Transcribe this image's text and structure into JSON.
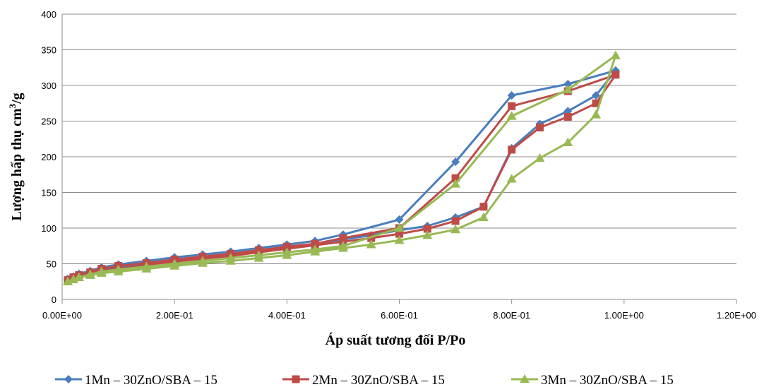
{
  "chart_data": {
    "type": "line",
    "xlabel": "Áp suất tương đối P/Po",
    "ylabel_main": "Lượng hấp thụ cm",
    "ylabel_sup": "3",
    "ylabel_tail": "/g",
    "xlim": [
      0,
      1.2
    ],
    "ylim": [
      0,
      400
    ],
    "x_ticks": [
      0,
      0.2,
      0.4,
      0.6,
      0.8,
      1.0,
      1.2
    ],
    "x_tick_labels": [
      "0.00E+00",
      "2.00E-01",
      "4.00E-01",
      "6.00E-01",
      "8.00E-01",
      "1.00E+00",
      "1.20E+00"
    ],
    "y_ticks": [
      0,
      50,
      100,
      150,
      200,
      250,
      300,
      350,
      400
    ],
    "y_tick_labels": [
      "0",
      "50",
      "100",
      "150",
      "200",
      "250",
      "300",
      "350",
      "400"
    ],
    "grid": "horizontal",
    "legend_position": "bottom",
    "series": [
      {
        "name": "1Mn – 30ZnO/SBA – 15",
        "color": "#4a7ebb",
        "marker": "diamond",
        "points": [
          [
            0.01,
            29
          ],
          [
            0.02,
            32
          ],
          [
            0.03,
            36
          ],
          [
            0.05,
            40
          ],
          [
            0.07,
            45
          ],
          [
            0.1,
            49
          ],
          [
            0.15,
            54
          ],
          [
            0.2,
            59
          ],
          [
            0.25,
            63
          ],
          [
            0.3,
            67
          ],
          [
            0.35,
            72
          ],
          [
            0.4,
            77
          ],
          [
            0.45,
            82
          ],
          [
            0.5,
            91
          ],
          [
            0.6,
            112
          ],
          [
            0.7,
            193
          ],
          [
            0.8,
            286
          ],
          [
            0.9,
            302
          ],
          [
            0.985,
            321
          ],
          [
            0.95,
            286
          ],
          [
            0.9,
            264
          ],
          [
            0.85,
            246
          ],
          [
            0.8,
            212
          ],
          [
            0.75,
            130
          ],
          [
            0.7,
            115
          ],
          [
            0.65,
            103
          ],
          [
            0.6,
            97
          ],
          [
            0.55,
            90
          ],
          [
            0.5,
            84
          ],
          [
            0.45,
            78
          ],
          [
            0.4,
            72
          ],
          [
            0.35,
            68
          ],
          [
            0.3,
            63
          ],
          [
            0.25,
            59
          ],
          [
            0.2,
            55
          ],
          [
            0.15,
            50
          ],
          [
            0.1,
            45
          ],
          [
            0.07,
            42
          ],
          [
            0.05,
            38
          ],
          [
            0.03,
            35
          ],
          [
            0.02,
            32
          ],
          [
            0.01,
            28
          ]
        ]
      },
      {
        "name": "2Mn – 30ZnO/SBA – 15",
        "color": "#be4b48",
        "marker": "square",
        "points": [
          [
            0.01,
            27
          ],
          [
            0.02,
            30
          ],
          [
            0.03,
            34
          ],
          [
            0.05,
            38
          ],
          [
            0.07,
            43
          ],
          [
            0.1,
            47
          ],
          [
            0.15,
            51
          ],
          [
            0.2,
            56
          ],
          [
            0.25,
            60
          ],
          [
            0.3,
            64
          ],
          [
            0.35,
            69
          ],
          [
            0.4,
            74
          ],
          [
            0.45,
            78
          ],
          [
            0.5,
            86
          ],
          [
            0.6,
            100
          ],
          [
            0.7,
            170
          ],
          [
            0.8,
            271
          ],
          [
            0.9,
            292
          ],
          [
            0.985,
            315
          ],
          [
            0.95,
            275
          ],
          [
            0.9,
            256
          ],
          [
            0.85,
            241
          ],
          [
            0.8,
            210
          ],
          [
            0.75,
            130
          ],
          [
            0.7,
            110
          ],
          [
            0.65,
            99
          ],
          [
            0.6,
            92
          ],
          [
            0.55,
            86
          ],
          [
            0.5,
            81
          ],
          [
            0.45,
            76
          ],
          [
            0.4,
            71
          ],
          [
            0.35,
            66
          ],
          [
            0.3,
            61
          ],
          [
            0.25,
            57
          ],
          [
            0.2,
            53
          ],
          [
            0.15,
            48
          ],
          [
            0.1,
            43
          ],
          [
            0.07,
            40
          ],
          [
            0.05,
            37
          ],
          [
            0.03,
            34
          ],
          [
            0.02,
            31
          ],
          [
            0.01,
            27
          ]
        ]
      },
      {
        "name": "3Mn – 30ZnO/SBA – 15",
        "color": "#98b954",
        "marker": "triangle",
        "points": [
          [
            0.01,
            25
          ],
          [
            0.02,
            28
          ],
          [
            0.03,
            31
          ],
          [
            0.05,
            35
          ],
          [
            0.07,
            39
          ],
          [
            0.1,
            42
          ],
          [
            0.15,
            46
          ],
          [
            0.2,
            50
          ],
          [
            0.25,
            54
          ],
          [
            0.3,
            58
          ],
          [
            0.35,
            62
          ],
          [
            0.4,
            66
          ],
          [
            0.45,
            70
          ],
          [
            0.5,
            75
          ],
          [
            0.6,
            100
          ],
          [
            0.7,
            162
          ],
          [
            0.8,
            257
          ],
          [
            0.9,
            294
          ],
          [
            0.985,
            342
          ],
          [
            0.95,
            259
          ],
          [
            0.9,
            220
          ],
          [
            0.85,
            198
          ],
          [
            0.8,
            169
          ],
          [
            0.75,
            115
          ],
          [
            0.7,
            98
          ],
          [
            0.65,
            90
          ],
          [
            0.6,
            83
          ],
          [
            0.55,
            77
          ],
          [
            0.5,
            72
          ],
          [
            0.45,
            67
          ],
          [
            0.4,
            62
          ],
          [
            0.35,
            58
          ],
          [
            0.3,
            54
          ],
          [
            0.25,
            51
          ],
          [
            0.2,
            47
          ],
          [
            0.15,
            43
          ],
          [
            0.1,
            39
          ],
          [
            0.07,
            37
          ],
          [
            0.05,
            34
          ],
          [
            0.03,
            31
          ],
          [
            0.02,
            28
          ],
          [
            0.01,
            25
          ]
        ]
      }
    ]
  }
}
